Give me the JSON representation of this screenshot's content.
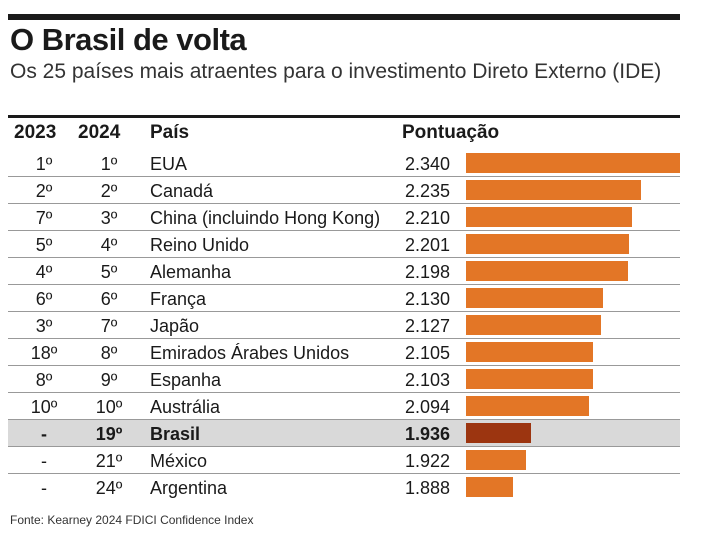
{
  "title": "O Brasil de volta",
  "subtitle": "Os 25 países mais atraentes para o investimento Direto Externo (IDE)",
  "source": "Fonte: Kearney 2024 FDICI Confidence Index",
  "colors": {
    "bar": "#e37626",
    "bar_highlight": "#9c3510",
    "row_highlight": "#d9d9d9"
  },
  "chart_data": {
    "type": "bar",
    "orientation": "horizontal",
    "columns": [
      "2023",
      "2024",
      "País",
      "Pontuação"
    ],
    "xlim": [
      1760,
      2340
    ],
    "rows": [
      {
        "r2023": "1º",
        "r2024": "1º",
        "country": "EUA",
        "label": "2.340",
        "value": 2340
      },
      {
        "r2023": "2º",
        "r2024": "2º",
        "country": "Canadá",
        "label": "2.235",
        "value": 2235
      },
      {
        "r2023": "7º",
        "r2024": "3º",
        "country": "China (incluindo Hong Kong)",
        "label": "2.210",
        "value": 2210
      },
      {
        "r2023": "5º",
        "r2024": "4º",
        "country": "Reino Unido",
        "label": "2.201",
        "value": 2201
      },
      {
        "r2023": "4º",
        "r2024": "5º",
        "country": "Alemanha",
        "label": "2.198",
        "value": 2198
      },
      {
        "r2023": "6º",
        "r2024": "6º",
        "country": "França",
        "label": "2.130",
        "value": 2130
      },
      {
        "r2023": "3º",
        "r2024": "7º",
        "country": "Japão",
        "label": "2.127",
        "value": 2127
      },
      {
        "r2023": "18º",
        "r2024": "8º",
        "country": "Emirados Árabes Unidos",
        "label": "2.105",
        "value": 2105
      },
      {
        "r2023": "8º",
        "r2024": "9º",
        "country": "Espanha",
        "label": "2.103",
        "value": 2103
      },
      {
        "r2023": "10º",
        "r2024": "10º",
        "country": "Austrália",
        "label": "2.094",
        "value": 2094
      },
      {
        "r2023": "-",
        "r2024": "19º",
        "country": "Brasil",
        "label": "1.936",
        "value": 1936,
        "highlight": true
      },
      {
        "r2023": "-",
        "r2024": "21º",
        "country": "México",
        "label": "1.922",
        "value": 1922
      },
      {
        "r2023": "-",
        "r2024": "24º",
        "country": "Argentina",
        "label": "1.888",
        "value": 1888
      }
    ]
  }
}
